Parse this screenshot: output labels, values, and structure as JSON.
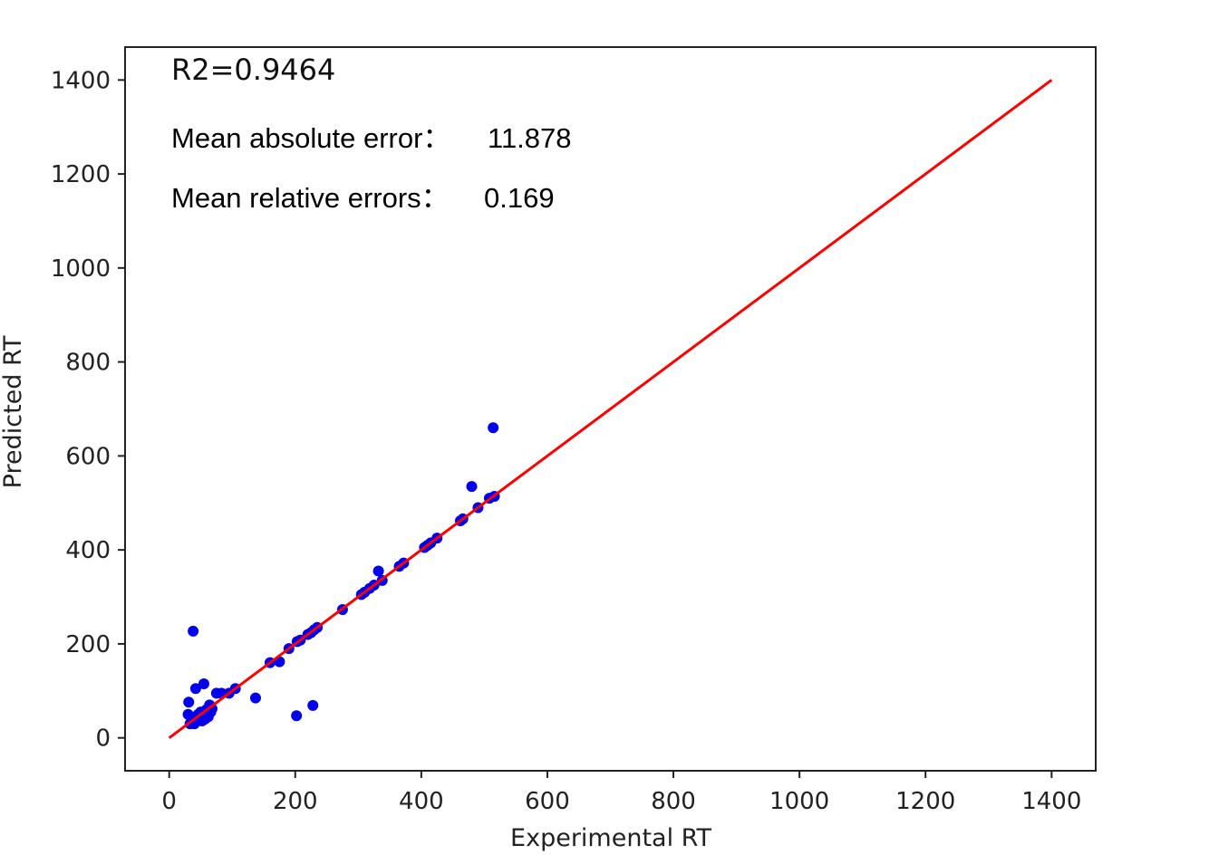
{
  "chart_data": {
    "type": "scatter",
    "title": "",
    "xlabel": "Experimental RT",
    "ylabel": "Predicted RT",
    "xlim": [
      -70,
      1470
    ],
    "ylim": [
      -70,
      1470
    ],
    "xticks": [
      0,
      200,
      400,
      600,
      800,
      1000,
      1200,
      1400
    ],
    "yticks": [
      0,
      200,
      400,
      600,
      800,
      1000,
      1200,
      1400
    ],
    "xtick_labels": [
      "0",
      "200",
      "400",
      "600",
      "800",
      "1000",
      "1200",
      "1400"
    ],
    "ytick_labels": [
      "0",
      "200",
      "400",
      "600",
      "800",
      "1000",
      "1200",
      "1400"
    ],
    "grid": false,
    "annotations": {
      "r2": "R2=0.9464",
      "mae_label": "Mean absolute error：",
      "mae_value": "11.878",
      "mre_label": "Mean relative errors：",
      "mre_value": "0.169"
    },
    "series": [
      {
        "color": "#0000ee",
        "points": [
          [
            38,
            227
          ],
          [
            31,
            76
          ],
          [
            42,
            105
          ],
          [
            55,
            115
          ],
          [
            30,
            50
          ],
          [
            33,
            30
          ],
          [
            36,
            35
          ],
          [
            40,
            30
          ],
          [
            42,
            45
          ],
          [
            44,
            38
          ],
          [
            46,
            50
          ],
          [
            48,
            42
          ],
          [
            50,
            55
          ],
          [
            52,
            36
          ],
          [
            54,
            48
          ],
          [
            57,
            40
          ],
          [
            59,
            60
          ],
          [
            62,
            45
          ],
          [
            64,
            70
          ],
          [
            66,
            55
          ],
          [
            68,
            62
          ],
          [
            75,
            95
          ],
          [
            83,
            95
          ],
          [
            95,
            95
          ],
          [
            105,
            105
          ],
          [
            137,
            85
          ],
          [
            160,
            160
          ],
          [
            175,
            162
          ],
          [
            190,
            190
          ],
          [
            203,
            205
          ],
          [
            208,
            208
          ],
          [
            220,
            220
          ],
          [
            225,
            224
          ],
          [
            230,
            230
          ],
          [
            235,
            235
          ],
          [
            202,
            47
          ],
          [
            228,
            69
          ],
          [
            275,
            273
          ],
          [
            305,
            305
          ],
          [
            310,
            310
          ],
          [
            318,
            318
          ],
          [
            325,
            325
          ],
          [
            332,
            355
          ],
          [
            338,
            335
          ],
          [
            365,
            365
          ],
          [
            372,
            372
          ],
          [
            405,
            405
          ],
          [
            410,
            410
          ],
          [
            415,
            415
          ],
          [
            425,
            425
          ],
          [
            462,
            462
          ],
          [
            466,
            466
          ],
          [
            480,
            535
          ],
          [
            490,
            490
          ],
          [
            508,
            510
          ],
          [
            514,
            660
          ],
          [
            516,
            514
          ]
        ]
      },
      {
        "type": "line",
        "color": "#ff0000",
        "x": [
          0,
          1400
        ],
        "y": [
          0,
          1400
        ]
      }
    ]
  }
}
